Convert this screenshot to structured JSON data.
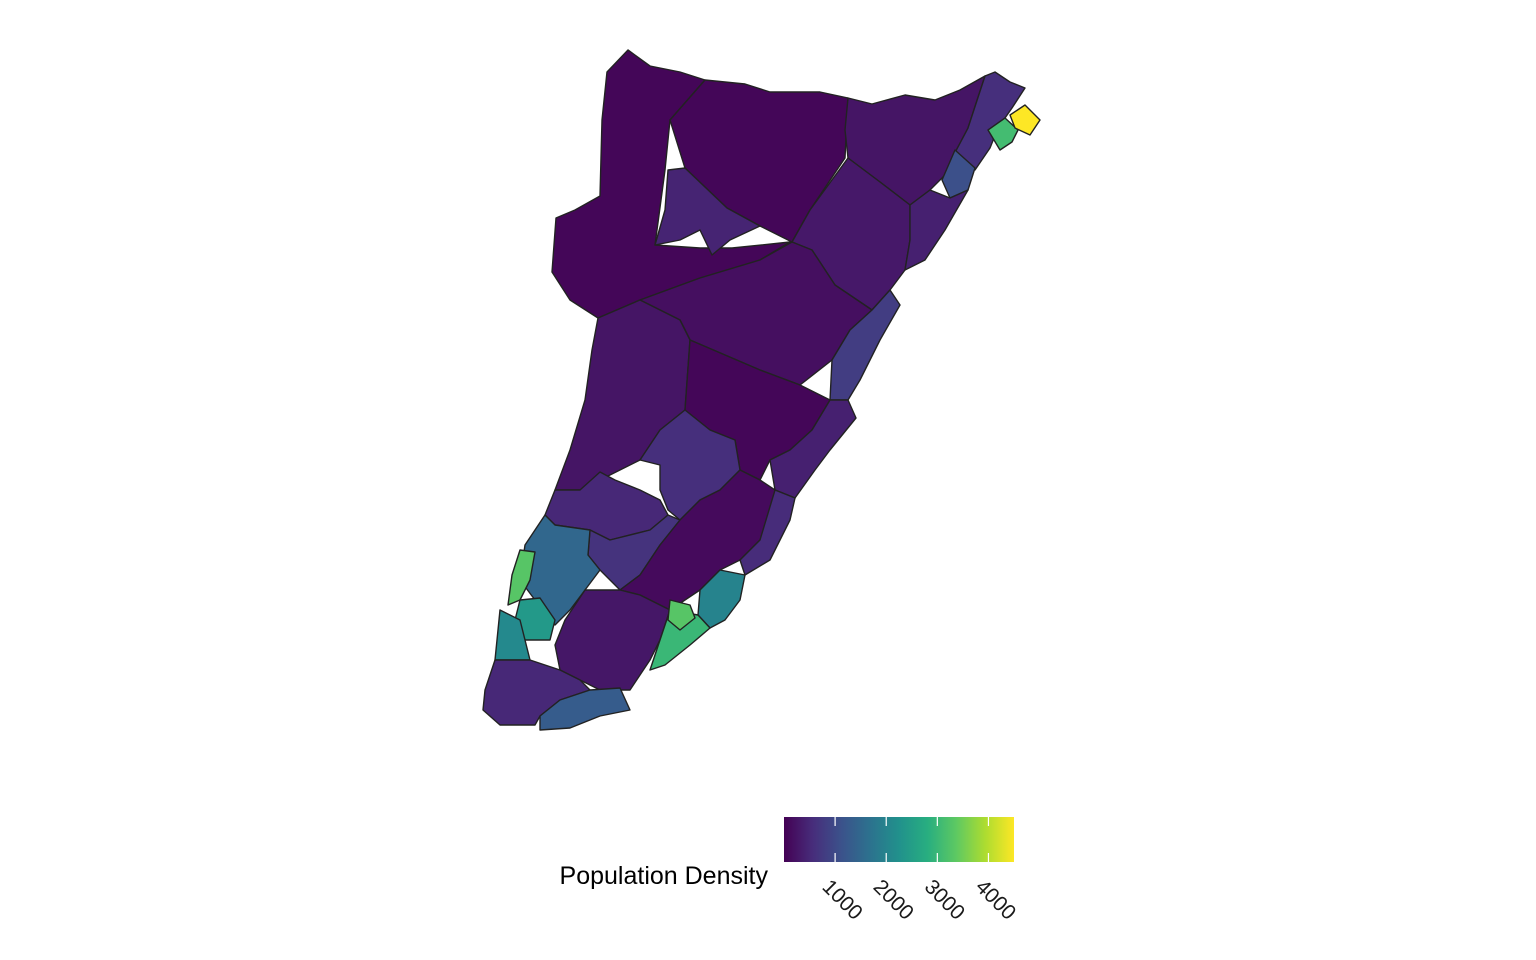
{
  "legend": {
    "title": "Population Density",
    "ticks": [
      "1000",
      "2000",
      "3000",
      "4000"
    ],
    "tick_values": [
      1000,
      2000,
      3000,
      4000
    ],
    "range": [
      0,
      4500
    ],
    "placement": "bottom"
  },
  "colors": {
    "border": "#222222",
    "palette": "viridis",
    "ramp": [
      "#440154",
      "#472d7b",
      "#3b528b",
      "#2c728e",
      "#21918c",
      "#28ae80",
      "#5ec962",
      "#addc30",
      "#fde725"
    ]
  },
  "chart_data": {
    "type": "choropleth",
    "variable": "Population Density",
    "scale": "viridis",
    "range": [
      0,
      4500
    ],
    "regions": [
      {
        "id": "north-west",
        "value": 60
      },
      {
        "id": "north-central",
        "value": 60
      },
      {
        "id": "north-east-rural",
        "value": 250
      },
      {
        "id": "northeast-coast",
        "value": 600
      },
      {
        "id": "northeast-shore",
        "value": 1100
      },
      {
        "id": "northeast-town",
        "value": 3100
      },
      {
        "id": "northeast-tip",
        "value": 4500
      },
      {
        "id": "inland-enclave",
        "value": 450
      },
      {
        "id": "east-rural",
        "value": 300
      },
      {
        "id": "east-coast-strip",
        "value": 400
      },
      {
        "id": "mid-central",
        "value": 180
      },
      {
        "id": "mid-coast",
        "value": 800
      },
      {
        "id": "central-west",
        "value": 250
      },
      {
        "id": "central",
        "value": 60
      },
      {
        "id": "central-coast",
        "value": 400
      },
      {
        "id": "central-enclave",
        "value": 600
      },
      {
        "id": "southwest-a",
        "value": 500
      },
      {
        "id": "southwest-b",
        "value": 650
      },
      {
        "id": "south-central",
        "value": 120
      },
      {
        "id": "south-coast",
        "value": 550
      },
      {
        "id": "southwest-town",
        "value": 1500
      },
      {
        "id": "southwest-beach",
        "value": 3300
      },
      {
        "id": "southwest-town-2",
        "value": 2400
      },
      {
        "id": "southwest-shore",
        "value": 2100
      },
      {
        "id": "south",
        "value": 280
      },
      {
        "id": "south-coast-town",
        "value": 2000
      },
      {
        "id": "south-coast-beach",
        "value": 3000
      },
      {
        "id": "south-coast-beach-2",
        "value": 3300
      },
      {
        "id": "southern-tip",
        "value": 500
      },
      {
        "id": "southern-shore",
        "value": 1300
      }
    ]
  }
}
